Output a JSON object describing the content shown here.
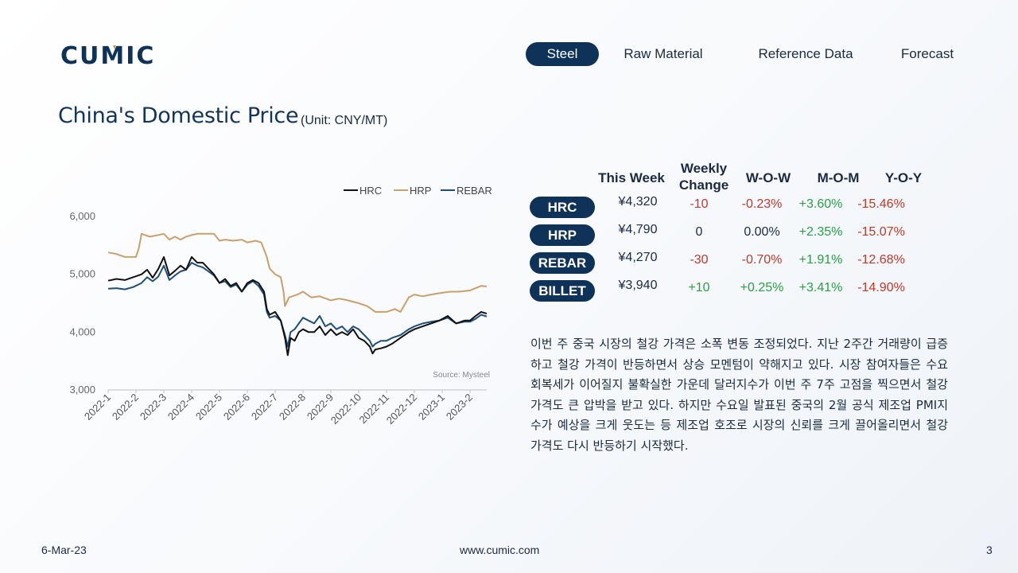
{
  "brand": {
    "logo_text": "CUMIC",
    "colors": {
      "navy": "#0f3358",
      "gold": "#c39a4e"
    }
  },
  "nav": {
    "items": [
      {
        "label": "Steel",
        "active": true
      },
      {
        "label": "Raw Material",
        "active": false
      },
      {
        "label": "Reference Data",
        "active": false
      },
      {
        "label": "Forecast",
        "active": false
      }
    ]
  },
  "page": {
    "title": "China's Domestic Price",
    "unit": "(Unit: CNY/MT)"
  },
  "table": {
    "headers": {
      "this_week": "This Week",
      "weekly_change_1": "Weekly",
      "weekly_change_2": "Change",
      "wow": "W-O-W",
      "mom": "M-O-M",
      "yoy": "Y-O-Y"
    },
    "rows": [
      {
        "product": "HRC",
        "this_week": "¥4,320",
        "weekly_change": "-10",
        "wow": "-0.23%",
        "mom": "+3.60%",
        "yoy": "-15.46%"
      },
      {
        "product": "HRP",
        "this_week": "¥4,790",
        "weekly_change": "0",
        "wow": "0.00%",
        "mom": "+2.35%",
        "yoy": "-15.07%"
      },
      {
        "product": "REBAR",
        "this_week": "¥4,270",
        "weekly_change": "-30",
        "wow": "-0.70%",
        "mom": "+1.91%",
        "yoy": "-12.68%"
      },
      {
        "product": "BILLET",
        "this_week": "¥3,940",
        "weekly_change": "+10",
        "wow": "+0.25%",
        "mom": "+3.41%",
        "yoy": "-14.90%"
      }
    ],
    "colors": {
      "negative": "#c0392b",
      "positive": "#27a046",
      "neutral": "#1b2a40"
    }
  },
  "commentary": "이번 주 중국 시장의 철강 가격은 소폭 변동 조정되었다. 지난 2주간 거래량이 급증하고 철강 가격이 반등하면서 상승 모멘텀이 약해지고 있다. 시장 참여자들은 수요 회복세가 이어질지 불확실한 가운데 달러지수가 이번 주 7주 고점을 찍으면서 철강 가격도 큰 압박을 받고 있다. 하지만 수요일 발표된 중국의 2월 공식 제조업 PMI지수가 예상을 크게 웃도는 등 제조업 호조로 시장의 신뢰를 크게 끌어올리면서 철강 가격도 다시 반등하기 시작했다.",
  "footer": {
    "date": "6-Mar-23",
    "website": "www.cumic.com",
    "page_number": "3"
  },
  "chart_data": {
    "type": "line",
    "title": "",
    "xlabel": "",
    "ylabel": "",
    "ylim": [
      3000,
      6000
    ],
    "y_ticks": [
      "3,000",
      "4,000",
      "5,000",
      "6,000"
    ],
    "x_ticks": [
      "2022-1",
      "2022-2",
      "2022-3",
      "2022-4",
      "2022-5",
      "2022-6",
      "2022-7",
      "2022-8",
      "2022-9",
      "2022-10",
      "2022-11",
      "2022-12",
      "2023-1",
      "2023-2"
    ],
    "source": "Source: Mysteel",
    "legend_position": "top-right",
    "grid": false,
    "series": [
      {
        "name": "HRC",
        "color": "#111111",
        "points": [
          [
            0,
            4890
          ],
          [
            0.3,
            4920
          ],
          [
            0.6,
            4900
          ],
          [
            0.9,
            4950
          ],
          [
            1.2,
            5000
          ],
          [
            1.4,
            5080
          ],
          [
            1.6,
            4940
          ],
          [
            1.8,
            5090
          ],
          [
            2.0,
            5300
          ],
          [
            2.2,
            4980
          ],
          [
            2.4,
            5060
          ],
          [
            2.6,
            5150
          ],
          [
            2.8,
            5080
          ],
          [
            3.0,
            5300
          ],
          [
            3.2,
            5200
          ],
          [
            3.4,
            5200
          ],
          [
            3.6,
            5100
          ],
          [
            3.8,
            5000
          ],
          [
            4.0,
            4850
          ],
          [
            4.2,
            4920
          ],
          [
            4.4,
            4800
          ],
          [
            4.6,
            4850
          ],
          [
            4.8,
            4700
          ],
          [
            5.0,
            4850
          ],
          [
            5.2,
            4900
          ],
          [
            5.4,
            4850
          ],
          [
            5.6,
            4700
          ],
          [
            5.7,
            4400
          ],
          [
            5.8,
            4300
          ],
          [
            6.0,
            4350
          ],
          [
            6.2,
            4200
          ],
          [
            6.35,
            3900
          ],
          [
            6.45,
            3600
          ],
          [
            6.55,
            3900
          ],
          [
            6.7,
            3850
          ],
          [
            6.85,
            4000
          ],
          [
            7.0,
            4050
          ],
          [
            7.2,
            4000
          ],
          [
            7.4,
            4000
          ],
          [
            7.6,
            4100
          ],
          [
            7.8,
            3950
          ],
          [
            8.0,
            4050
          ],
          [
            8.2,
            3950
          ],
          [
            8.4,
            4000
          ],
          [
            8.6,
            3950
          ],
          [
            8.8,
            4050
          ],
          [
            9.0,
            3900
          ],
          [
            9.2,
            3850
          ],
          [
            9.4,
            3750
          ],
          [
            9.5,
            3630
          ],
          [
            9.6,
            3700
          ],
          [
            9.8,
            3720
          ],
          [
            10.0,
            3750
          ],
          [
            10.2,
            3800
          ],
          [
            10.5,
            3900
          ],
          [
            10.8,
            4000
          ],
          [
            11.0,
            4050
          ],
          [
            11.3,
            4100
          ],
          [
            11.6,
            4150
          ],
          [
            11.9,
            4200
          ],
          [
            12.2,
            4280
          ],
          [
            12.5,
            4150
          ],
          [
            12.8,
            4200
          ],
          [
            13.0,
            4200
          ],
          [
            13.2,
            4280
          ],
          [
            13.4,
            4350
          ],
          [
            13.6,
            4320
          ]
        ]
      },
      {
        "name": "HRP",
        "color": "#c9a06a",
        "points": [
          [
            0,
            5380
          ],
          [
            0.3,
            5350
          ],
          [
            0.6,
            5300
          ],
          [
            1.0,
            5300
          ],
          [
            1.1,
            5450
          ],
          [
            1.2,
            5700
          ],
          [
            1.5,
            5650
          ],
          [
            1.8,
            5680
          ],
          [
            2.0,
            5700
          ],
          [
            2.2,
            5600
          ],
          [
            2.4,
            5650
          ],
          [
            2.6,
            5600
          ],
          [
            2.8,
            5650
          ],
          [
            3.0,
            5680
          ],
          [
            3.2,
            5700
          ],
          [
            3.5,
            5700
          ],
          [
            3.8,
            5700
          ],
          [
            4.0,
            5580
          ],
          [
            4.2,
            5600
          ],
          [
            4.5,
            5580
          ],
          [
            4.8,
            5600
          ],
          [
            5.0,
            5550
          ],
          [
            5.3,
            5580
          ],
          [
            5.5,
            5550
          ],
          [
            5.7,
            5300
          ],
          [
            5.8,
            5100
          ],
          [
            6.0,
            5000
          ],
          [
            6.2,
            4950
          ],
          [
            6.3,
            4700
          ],
          [
            6.35,
            4450
          ],
          [
            6.5,
            4600
          ],
          [
            6.8,
            4650
          ],
          [
            7.0,
            4700
          ],
          [
            7.3,
            4600
          ],
          [
            7.6,
            4620
          ],
          [
            8.0,
            4550
          ],
          [
            8.3,
            4580
          ],
          [
            8.6,
            4550
          ],
          [
            9.0,
            4500
          ],
          [
            9.3,
            4450
          ],
          [
            9.6,
            4350
          ],
          [
            10.0,
            4350
          ],
          [
            10.3,
            4400
          ],
          [
            10.5,
            4350
          ],
          [
            10.8,
            4600
          ],
          [
            11.0,
            4650
          ],
          [
            11.3,
            4620
          ],
          [
            11.6,
            4650
          ],
          [
            12.0,
            4680
          ],
          [
            12.3,
            4700
          ],
          [
            12.6,
            4700
          ],
          [
            13.0,
            4720
          ],
          [
            13.2,
            4760
          ],
          [
            13.4,
            4800
          ],
          [
            13.6,
            4790
          ]
        ]
      },
      {
        "name": "REBAR",
        "color": "#1f4e79",
        "points": [
          [
            0,
            4750
          ],
          [
            0.3,
            4760
          ],
          [
            0.6,
            4740
          ],
          [
            0.9,
            4780
          ],
          [
            1.2,
            4850
          ],
          [
            1.4,
            4950
          ],
          [
            1.6,
            4880
          ],
          [
            1.8,
            4960
          ],
          [
            2.0,
            5150
          ],
          [
            2.2,
            4900
          ],
          [
            2.4,
            4980
          ],
          [
            2.6,
            5050
          ],
          [
            2.8,
            5080
          ],
          [
            3.0,
            5200
          ],
          [
            3.2,
            5150
          ],
          [
            3.4,
            5120
          ],
          [
            3.6,
            5050
          ],
          [
            3.8,
            4980
          ],
          [
            4.0,
            4850
          ],
          [
            4.2,
            4880
          ],
          [
            4.4,
            4780
          ],
          [
            4.6,
            4820
          ],
          [
            4.8,
            4700
          ],
          [
            5.0,
            4820
          ],
          [
            5.2,
            4880
          ],
          [
            5.4,
            4800
          ],
          [
            5.6,
            4650
          ],
          [
            5.7,
            4350
          ],
          [
            5.8,
            4250
          ],
          [
            6.0,
            4280
          ],
          [
            6.2,
            4200
          ],
          [
            6.35,
            3950
          ],
          [
            6.45,
            3750
          ],
          [
            6.55,
            4000
          ],
          [
            6.7,
            4050
          ],
          [
            6.85,
            4150
          ],
          [
            7.0,
            4250
          ],
          [
            7.2,
            4200
          ],
          [
            7.4,
            4150
          ],
          [
            7.6,
            4280
          ],
          [
            7.8,
            4100
          ],
          [
            8.0,
            4150
          ],
          [
            8.2,
            4050
          ],
          [
            8.4,
            4100
          ],
          [
            8.6,
            4000
          ],
          [
            8.8,
            4100
          ],
          [
            9.0,
            4050
          ],
          [
            9.2,
            3950
          ],
          [
            9.4,
            3850
          ],
          [
            9.5,
            3750
          ],
          [
            9.6,
            3800
          ],
          [
            9.8,
            3850
          ],
          [
            10.0,
            3850
          ],
          [
            10.2,
            3900
          ],
          [
            10.5,
            3950
          ],
          [
            10.8,
            4050
          ],
          [
            11.0,
            4100
          ],
          [
            11.3,
            4150
          ],
          [
            11.6,
            4180
          ],
          [
            11.9,
            4200
          ],
          [
            12.2,
            4250
          ],
          [
            12.5,
            4150
          ],
          [
            12.8,
            4180
          ],
          [
            13.0,
            4180
          ],
          [
            13.2,
            4230
          ],
          [
            13.4,
            4300
          ],
          [
            13.6,
            4270
          ]
        ]
      }
    ]
  }
}
